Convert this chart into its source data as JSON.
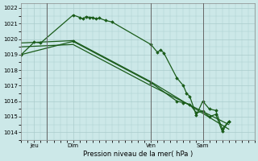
{
  "background_color": "#cce8e8",
  "grid_color": "#aacccc",
  "line_color": "#1a5c1a",
  "marker_color": "#1a5c1a",
  "xlabel": "Pression niveau de la mer( hPa )",
  "ylim": [
    1013.5,
    1022.3
  ],
  "yticks": [
    1014,
    1015,
    1016,
    1017,
    1018,
    1019,
    1020,
    1021,
    1022
  ],
  "day_labels": [
    "Jeu",
    "Dim",
    "Ven",
    "Sam"
  ],
  "day_positions": [
    2,
    8,
    20,
    28
  ],
  "day_vlines": [
    4,
    20,
    28
  ],
  "xlim": [
    0,
    36
  ],
  "series": [
    {
      "x": [
        0,
        2,
        3,
        8,
        9,
        9.5,
        10,
        10.5,
        11,
        11.5,
        12,
        13,
        14,
        20,
        21,
        21.5,
        22,
        24,
        25,
        25.5,
        26,
        27,
        28,
        29,
        30,
        31,
        32
      ],
      "y": [
        1019.0,
        1019.8,
        1019.75,
        1021.55,
        1021.4,
        1021.3,
        1021.45,
        1021.4,
        1021.4,
        1021.3,
        1021.35,
        1021.2,
        1021.1,
        1019.65,
        1019.15,
        1019.3,
        1019.1,
        1017.5,
        1017.0,
        1016.5,
        1016.3,
        1015.1,
        1016.0,
        1015.5,
        1015.4,
        1014.2,
        1014.7
      ],
      "marker": "D",
      "ms": 1.8,
      "lw": 0.9
    },
    {
      "x": [
        0,
        8,
        20,
        32
      ],
      "y": [
        1019.75,
        1019.9,
        1017.25,
        1014.2
      ],
      "marker": null,
      "ms": 0,
      "lw": 0.9
    },
    {
      "x": [
        0,
        8,
        20,
        32
      ],
      "y": [
        1019.5,
        1019.65,
        1017.0,
        1014.5
      ],
      "marker": null,
      "ms": 0,
      "lw": 0.9
    },
    {
      "x": [
        0,
        8,
        20,
        24,
        25,
        26,
        27,
        28,
        29,
        30,
        31,
        32
      ],
      "y": [
        1019.0,
        1019.85,
        1017.2,
        1016.0,
        1015.9,
        1015.8,
        1015.25,
        1015.35,
        1015.0,
        1015.15,
        1014.05,
        1014.7
      ],
      "marker": "D",
      "ms": 1.8,
      "lw": 0.9
    }
  ]
}
